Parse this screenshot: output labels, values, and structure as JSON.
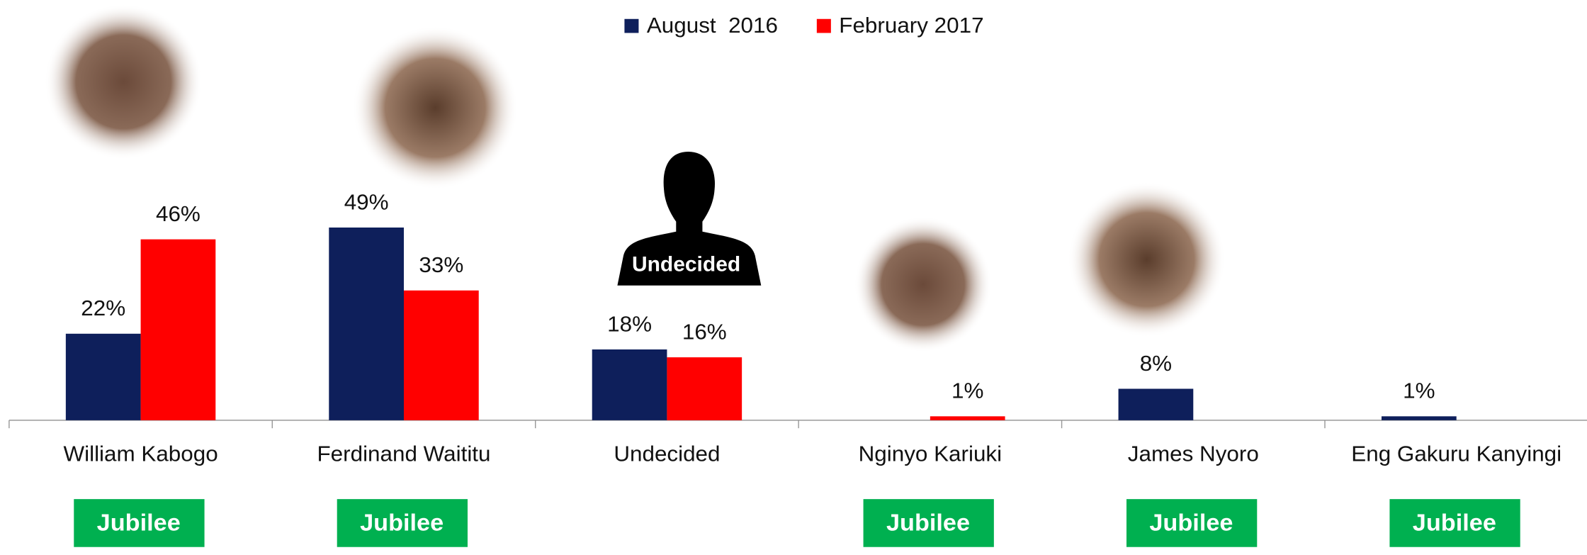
{
  "chart_data": {
    "type": "bar",
    "categories": [
      "William Kabogo",
      "Ferdinand Waititu",
      "Undecided",
      "Nginyo Kariuki",
      "James Nyoro",
      "Eng Gakuru Kanyingi"
    ],
    "series": [
      {
        "name": "August  2016",
        "color": "#0e1f5b",
        "values": [
          22,
          49,
          18,
          null,
          8,
          1
        ],
        "value_labels": [
          "22%",
          "49%",
          "18%",
          null,
          "8%",
          "1%"
        ]
      },
      {
        "name": "February 2017",
        "color": "#ff0000",
        "values": [
          46,
          33,
          16,
          1,
          null,
          null
        ],
        "value_labels": [
          "46%",
          "33%",
          "16%",
          "1%",
          null,
          null
        ]
      }
    ],
    "parties": [
      "Jubilee",
      "Jubilee",
      null,
      "Jubilee",
      "Jubilee",
      "Jubilee"
    ],
    "party_color": "#00b050",
    "silhouette_label": "Undecided",
    "legend_position": "top"
  }
}
